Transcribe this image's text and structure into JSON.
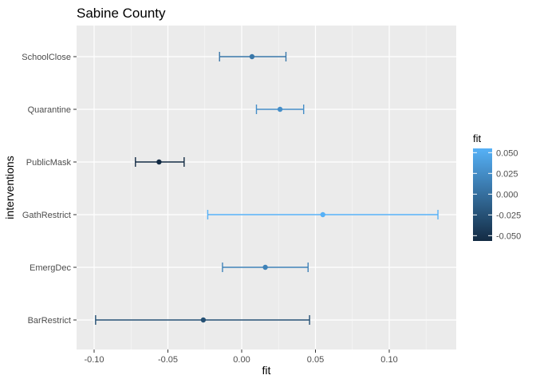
{
  "chart_data": {
    "type": "scatter",
    "title": "Sabine County",
    "xlabel": "fit",
    "ylabel": "interventions",
    "xlim": [
      -0.1,
      0.1
    ],
    "x_ticks": [
      "-0.10",
      "-0.05",
      "0.00",
      "0.05",
      "0.10"
    ],
    "grid": true,
    "categories": [
      "SchoolClose",
      "Quarantine",
      "PublicMask",
      "GathRestrict",
      "EmergDec",
      "BarRestrict"
    ],
    "series": [
      {
        "points": [
          {
            "category": "SchoolClose",
            "fit": 0.007,
            "lower": -0.015,
            "upper": 0.03
          },
          {
            "category": "Quarantine",
            "fit": 0.026,
            "lower": 0.01,
            "upper": 0.042
          },
          {
            "category": "PublicMask",
            "fit": -0.056,
            "lower": -0.072,
            "upper": -0.039
          },
          {
            "category": "GathRestrict",
            "fit": 0.055,
            "lower": -0.023,
            "upper": 0.133
          },
          {
            "category": "EmergDec",
            "fit": 0.016,
            "lower": -0.013,
            "upper": 0.045
          },
          {
            "category": "BarRestrict",
            "fit": -0.026,
            "lower": -0.099,
            "upper": 0.046
          }
        ]
      }
    ],
    "legend": {
      "title": "fit",
      "placement": "right",
      "labels": [
        "0.050",
        "0.025",
        "0.000",
        "-0.025",
        "-0.050"
      ],
      "color_low": "#132B43",
      "color_high": "#56B1F7"
    },
    "colors": {
      "panel_background": "#EBEBEB",
      "gridline": "#FFFFFF",
      "tick_text": "#4D4D4D",
      "title_text": "#000000"
    }
  }
}
